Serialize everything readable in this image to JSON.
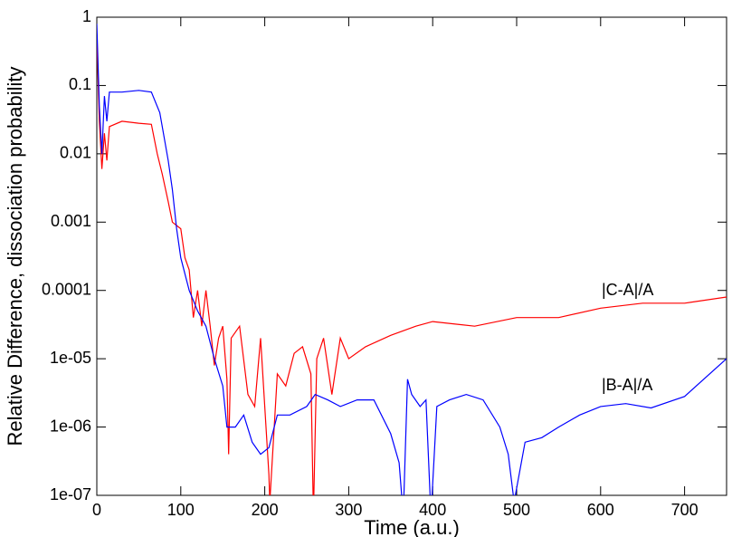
{
  "chart_data": {
    "type": "line",
    "x_label": "Time (a.u.)",
    "y_label": "Relative Difference, dissociation probability",
    "log_y": true,
    "xlim": [
      0,
      750
    ],
    "ylim": [
      1e-07,
      1
    ],
    "xticks": [
      0,
      100,
      200,
      300,
      400,
      500,
      600,
      700
    ],
    "yticks": [
      1,
      0.1,
      0.01,
      0.001,
      0.0001,
      {
        "value": 1e-05,
        "label": "1e-05"
      },
      {
        "value": 1e-06,
        "label": "1e-06"
      },
      {
        "value": 1e-07,
        "label": "1e-07"
      }
    ],
    "series": [
      {
        "name": "|C-A|/A",
        "color": "#ff0000",
        "x": [
          0,
          3,
          6,
          9,
          12,
          15,
          30,
          50,
          65,
          72,
          78,
          85,
          90,
          100,
          105,
          110,
          115,
          120,
          125,
          130,
          135,
          140,
          145,
          150,
          155,
          157,
          160,
          170,
          180,
          188,
          195,
          205,
          206,
          215,
          225,
          235,
          245,
          255,
          258,
          262,
          270,
          280,
          290,
          300,
          320,
          350,
          380,
          400,
          450,
          500,
          550,
          600,
          650,
          700,
          750
        ],
        "values": [
          0.5,
          0.03,
          0.006,
          0.02,
          0.008,
          0.025,
          0.03,
          0.028,
          0.027,
          0.01,
          0.005,
          0.002,
          0.001,
          0.0008,
          0.0003,
          0.0002,
          4e-05,
          0.0001,
          3e-05,
          0.0001,
          3e-05,
          8e-06,
          2e-05,
          3e-05,
          5e-06,
          4e-07,
          2e-05,
          3e-05,
          3e-06,
          2e-06,
          2e-05,
          2e-07,
          8e-08,
          6e-06,
          4e-06,
          1.2e-05,
          1.5e-05,
          6e-06,
          5e-08,
          1e-05,
          2e-05,
          3e-06,
          2e-05,
          1e-05,
          1.5e-05,
          2.2e-05,
          3e-05,
          3.5e-05,
          3e-05,
          4e-05,
          4e-05,
          5.5e-05,
          6.5e-05,
          6.5e-05,
          8e-05
        ]
      },
      {
        "name": "|B-A|/A",
        "color": "#0000ff",
        "x": [
          0,
          3,
          6,
          9,
          12,
          15,
          30,
          50,
          65,
          75,
          85,
          90,
          95,
          100,
          110,
          120,
          130,
          140,
          150,
          155,
          165,
          175,
          185,
          195,
          205,
          215,
          230,
          250,
          260,
          275,
          290,
          310,
          330,
          350,
          360,
          365,
          370,
          375,
          385,
          392,
          398,
          405,
          420,
          440,
          460,
          480,
          490,
          497,
          510,
          530,
          550,
          575,
          600,
          630,
          660,
          700,
          750
        ],
        "values": [
          0.8,
          0.05,
          0.01,
          0.07,
          0.03,
          0.08,
          0.08,
          0.085,
          0.08,
          0.04,
          0.008,
          0.003,
          0.0008,
          0.0003,
          0.0001,
          5e-05,
          3e-05,
          1e-05,
          4e-06,
          1e-06,
          1e-06,
          1.5e-06,
          6e-07,
          4e-07,
          5e-07,
          1.5e-06,
          1.5e-06,
          2e-06,
          3e-06,
          2.5e-06,
          2e-06,
          2.5e-06,
          2.5e-06,
          8e-07,
          3e-07,
          5e-08,
          5e-06,
          3e-06,
          2e-06,
          2.5e-06,
          5e-08,
          2e-06,
          2.5e-06,
          3e-06,
          2.5e-06,
          1e-06,
          4e-07,
          8e-08,
          6e-07,
          7e-07,
          1e-06,
          1.5e-06,
          2e-06,
          2.2e-06,
          1.9e-06,
          2.8e-06,
          1e-05
        ]
      }
    ]
  }
}
